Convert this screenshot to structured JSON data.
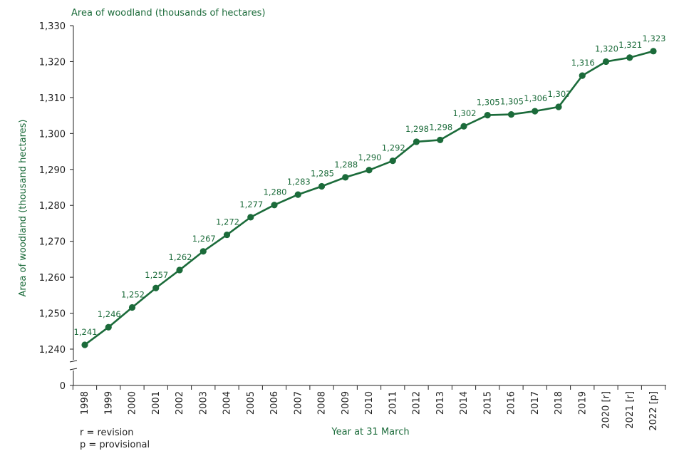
{
  "colors": {
    "series": "#1b6b3a",
    "title": "#1b6b3a",
    "axis": "#222222"
  },
  "chart_data": {
    "type": "line",
    "title": "Area of woodland (thousands of hectares)",
    "xlabel": "Year at 31 March",
    "ylabel": "Area of woodland (thousand hectares)",
    "y_break_label": "0",
    "ylim": [
      1240,
      1330
    ],
    "yticks": [
      "1,240",
      "1,250",
      "1,260",
      "1,270",
      "1,280",
      "1,290",
      "1,300",
      "1,310",
      "1,320",
      "1,330"
    ],
    "categories": [
      "1998",
      "1999",
      "2000",
      "2001",
      "2002",
      "2003",
      "2004",
      "2005",
      "2006",
      "2007",
      "2008",
      "2009",
      "2010",
      "2011",
      "2012",
      "2013",
      "2014",
      "2015",
      "2016",
      "2017",
      "2018",
      "2019",
      "2020 [r]",
      "2021 [r]",
      "2022 [p]"
    ],
    "values": [
      1241.2,
      1246.1,
      1251.6,
      1257.0,
      1262.0,
      1267.2,
      1271.8,
      1276.7,
      1280.1,
      1283.0,
      1285.3,
      1287.8,
      1289.8,
      1292.4,
      1297.7,
      1298.2,
      1302.0,
      1305.1,
      1305.3,
      1306.2,
      1307.4,
      1316.1,
      1320.0,
      1321.1,
      1322.9
    ],
    "data_labels": [
      "1,241",
      "1,246",
      "1,252",
      "1,257",
      "1,262",
      "1,267",
      "1,272",
      "1,277",
      "1,280",
      "1,283",
      "1,285",
      "1,288",
      "1,290",
      "1,292",
      "1,298",
      "1,298",
      "1,302",
      "1,305",
      "1,305",
      "1,306",
      "1,307",
      "1,316",
      "1,320",
      "1,321",
      "1,323"
    ],
    "grid": false,
    "legend": "none"
  },
  "notes": [
    "r = revision",
    "p = provisional"
  ]
}
